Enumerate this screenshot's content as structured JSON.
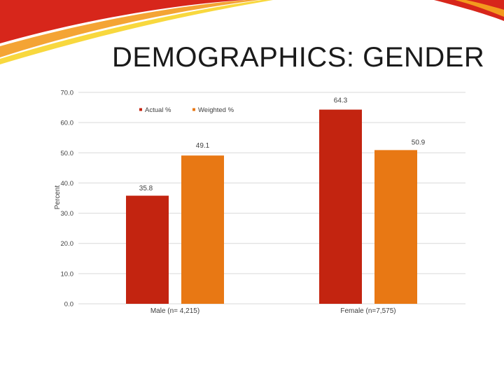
{
  "slide": {
    "title": "DEMOGRAPHICS: GENDER"
  },
  "colors": {
    "actual": "#c32410",
    "weighted": "#e87814",
    "grid": "#d9d9d9",
    "swoosh_red": "#d7261b",
    "swoosh_orange": "#f39a1e",
    "swoosh_yellow": "#f7d11c"
  },
  "chart_data": {
    "type": "bar",
    "title": "",
    "xlabel": "",
    "ylabel": "Percent",
    "ylim": [
      0,
      70
    ],
    "yticks": [
      "0.0",
      "10.0",
      "20.0",
      "30.0",
      "40.0",
      "50.0",
      "60.0",
      "70.0"
    ],
    "grid": true,
    "legend_position": "top-left",
    "categories": [
      "Male (n= 4,215)",
      "Female (n=7,575)"
    ],
    "series": [
      {
        "name": "Actual %",
        "values": [
          35.8,
          64.3
        ],
        "labels": [
          "35.8",
          "64.3"
        ]
      },
      {
        "name": "Weighted %",
        "values": [
          49.1,
          50.9
        ],
        "labels": [
          "49.1",
          "50.9"
        ]
      }
    ]
  }
}
